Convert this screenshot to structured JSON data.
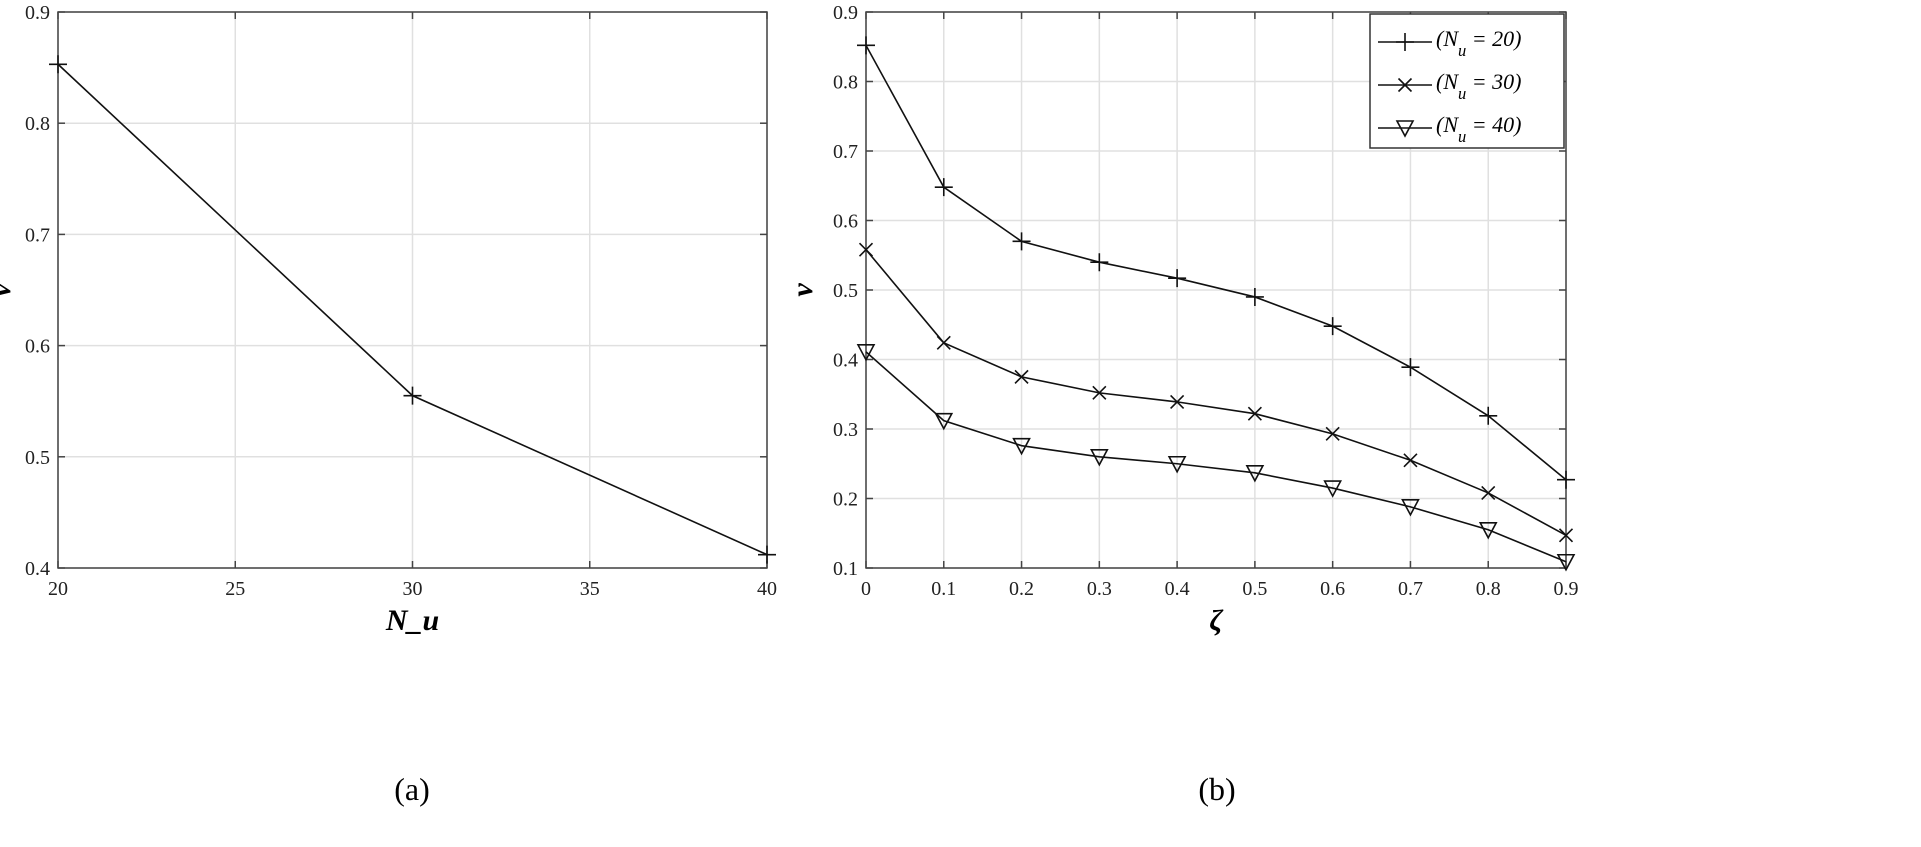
{
  "chart_data": [
    {
      "type": "line",
      "panel_label": "(a)",
      "xlabel": "N_u",
      "ylabel": "v",
      "xlim": [
        20,
        40
      ],
      "ylim": [
        0.4,
        0.9
      ],
      "xticks": [
        20,
        25,
        30,
        35,
        40
      ],
      "yticks": [
        0.4,
        0.5,
        0.6,
        0.7,
        0.8,
        0.9
      ],
      "xtick_labels": [
        "20",
        "25",
        "30",
        "35",
        "40"
      ],
      "ytick_labels": [
        "0.4",
        "0.5",
        "0.6",
        "0.7",
        "0.8",
        "0.9"
      ],
      "grid": true,
      "series": [
        {
          "marker": "plus",
          "x": [
            20,
            30,
            40
          ],
          "values": [
            0.853,
            0.555,
            0.412
          ]
        }
      ]
    },
    {
      "type": "line",
      "panel_label": "(b)",
      "xlabel": "ζ",
      "ylabel": "v",
      "xlim": [
        0,
        0.9
      ],
      "ylim": [
        0.1,
        0.9
      ],
      "xticks": [
        0,
        0.1,
        0.2,
        0.3,
        0.4,
        0.5,
        0.6,
        0.7,
        0.8,
        0.9
      ],
      "yticks": [
        0.1,
        0.2,
        0.3,
        0.4,
        0.5,
        0.6,
        0.7,
        0.8,
        0.9
      ],
      "xtick_labels": [
        "0",
        "0.1",
        "0.2",
        "0.3",
        "0.4",
        "0.5",
        "0.6",
        "0.7",
        "0.8",
        "0.9"
      ],
      "ytick_labels": [
        "0.1",
        "0.2",
        "0.3",
        "0.4",
        "0.5",
        "0.6",
        "0.7",
        "0.8",
        "0.9"
      ],
      "grid": true,
      "legend_position": "top-right",
      "series": [
        {
          "name": "(N_u = 20)",
          "marker": "plus",
          "x": [
            0,
            0.1,
            0.2,
            0.3,
            0.4,
            0.5,
            0.6,
            0.7,
            0.8,
            0.9
          ],
          "values": [
            0.852,
            0.648,
            0.57,
            0.54,
            0.517,
            0.49,
            0.448,
            0.389,
            0.319,
            0.227
          ]
        },
        {
          "name": "(N_u = 30)",
          "marker": "cross",
          "x": [
            0,
            0.1,
            0.2,
            0.3,
            0.4,
            0.5,
            0.6,
            0.7,
            0.8,
            0.9
          ],
          "values": [
            0.558,
            0.424,
            0.375,
            0.352,
            0.339,
            0.322,
            0.293,
            0.255,
            0.208,
            0.147
          ]
        },
        {
          "name": "(N_u = 40)",
          "marker": "triangle-down",
          "x": [
            0,
            0.1,
            0.2,
            0.3,
            0.4,
            0.5,
            0.6,
            0.7,
            0.8,
            0.9
          ],
          "values": [
            0.411,
            0.312,
            0.276,
            0.26,
            0.25,
            0.237,
            0.215,
            0.188,
            0.155,
            0.109
          ]
        }
      ]
    }
  ]
}
